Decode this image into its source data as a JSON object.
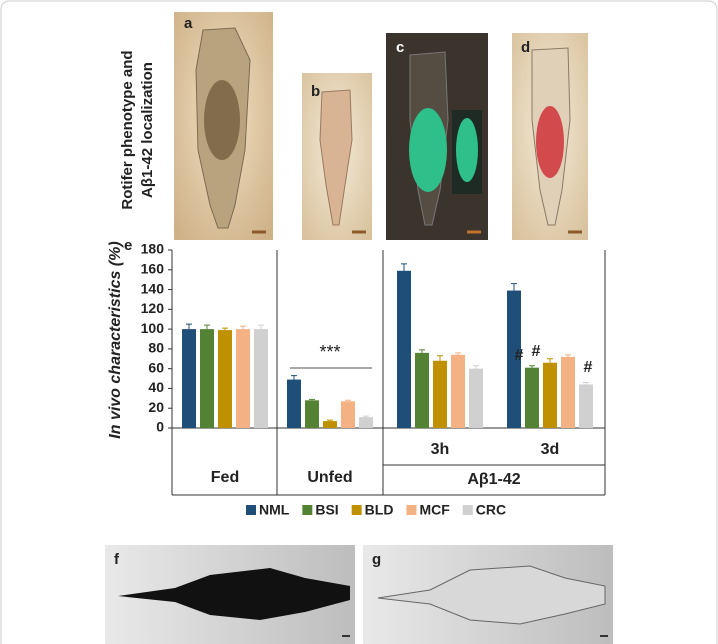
{
  "chart_data": {
    "type": "bar",
    "side_title": [
      "Rotifer phenotype and",
      "Aβ1-42 localization"
    ],
    "panel_labels": [
      "a",
      "b",
      "c",
      "d",
      "e",
      "f",
      "g"
    ],
    "y_label": "In vivo characteristics (%)",
    "categories": [
      "Fed",
      "Unfed",
      "3h",
      "3d"
    ],
    "group_label": "Aβ1-42",
    "series": [
      {
        "name": "NML",
        "color": "#1f4e79",
        "values": [
          100,
          49,
          159,
          139
        ],
        "errors": [
          5,
          4,
          7,
          7
        ]
      },
      {
        "name": "BSI",
        "color": "#548235",
        "values": [
          100,
          28,
          76,
          61
        ],
        "errors": [
          4,
          1,
          3,
          2
        ]
      },
      {
        "name": "BLD",
        "color": "#bf9000",
        "values": [
          99,
          7,
          68,
          66
        ],
        "errors": [
          2,
          1,
          5,
          4
        ]
      },
      {
        "name": "MCF",
        "color": "#f4b183",
        "values": [
          100,
          27,
          74,
          72
        ],
        "errors": [
          3,
          1,
          2,
          2
        ]
      },
      {
        "name": "CRC",
        "color": "#d0d0d0",
        "values": [
          100,
          11,
          60,
          44
        ],
        "errors": [
          4,
          1,
          3,
          2
        ]
      }
    ],
    "annotations": [
      "***",
      "#",
      "#",
      "#"
    ],
    "ylim": [
      0,
      180
    ],
    "yticks": [
      0,
      20,
      40,
      60,
      80,
      100,
      120,
      140,
      160,
      180
    ]
  }
}
